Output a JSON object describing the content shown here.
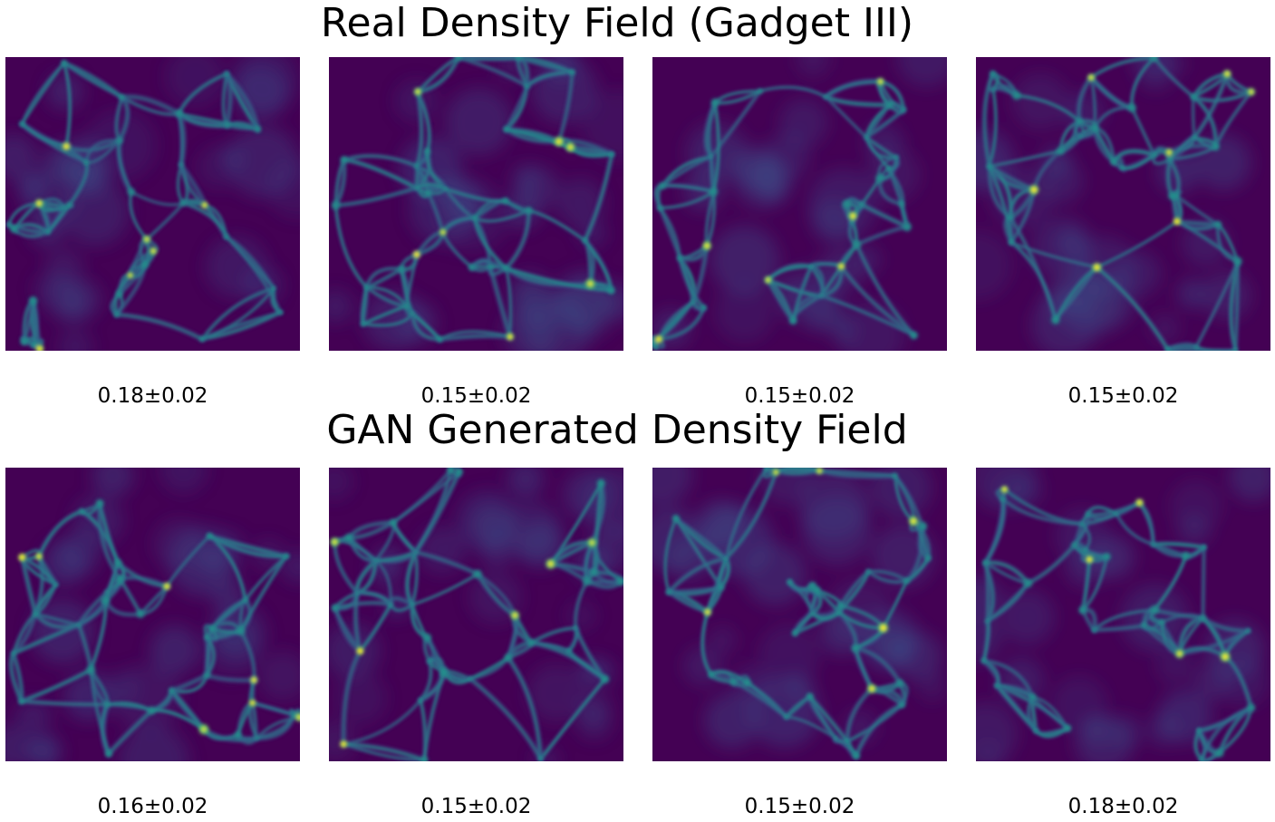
{
  "rows": [
    {
      "title": "Real Density Field (Gadget III)",
      "panels": [
        {
          "label": "0.18±0.02"
        },
        {
          "label": "0.15±0.02"
        },
        {
          "label": "0.15±0.02"
        },
        {
          "label": "0.15±0.02"
        }
      ]
    },
    {
      "title": "GAN Generated Density Field",
      "panels": [
        {
          "label": "0.16±0.02"
        },
        {
          "label": "0.15±0.02"
        },
        {
          "label": "0.15±0.02"
        },
        {
          "label": "0.18±0.02"
        }
      ]
    }
  ],
  "colormap": {
    "name": "viridis",
    "stops": [
      "#440154",
      "#3b528b",
      "#21918c",
      "#5ec962",
      "#fde725"
    ]
  }
}
